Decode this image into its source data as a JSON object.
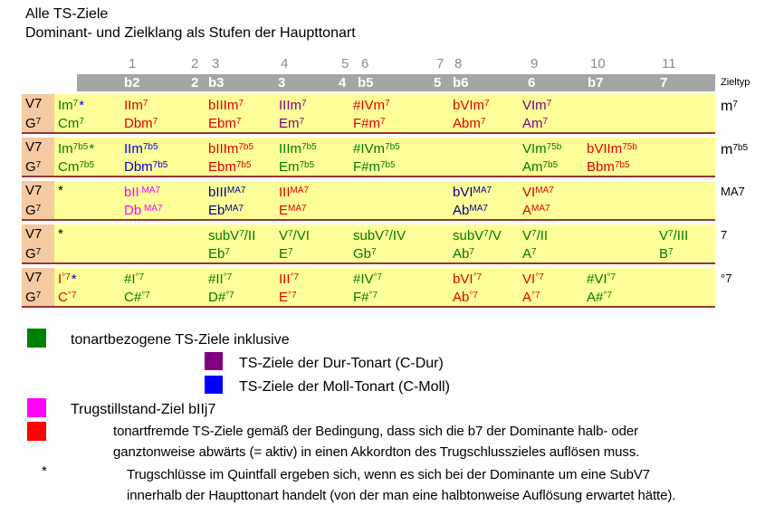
{
  "title": "Alle TS-Ziele",
  "subtitle": "Dominant- und Zielklang als Stufen der Haupttonart",
  "zieltyp_label": "Zieltyp",
  "header": {
    "numbers": [
      "1",
      "2",
      "3",
      "4",
      "5",
      "6",
      "7",
      "8",
      "9",
      "10",
      "11"
    ],
    "intervals": [
      "b2",
      "2",
      "b3",
      "3",
      "4",
      "b5",
      "5",
      "b6",
      "6",
      "b7",
      "7"
    ]
  },
  "dominant": {
    "roman": [
      [
        "V7",
        "n"
      ]
    ],
    "chord": [
      [
        "G",
        "n"
      ],
      [
        "7",
        "s"
      ]
    ]
  },
  "colors": {
    "green": "#007A00",
    "red": "#E00000",
    "purple": "#7D007D",
    "blue": "#0000DC",
    "navy": "#00008B",
    "magenta": "#FF00FF",
    "black": "#000000",
    "starblue": "#0000CD"
  },
  "rows": [
    {
      "zieltyp": [
        [
          "m",
          "n"
        ],
        [
          "7",
          "s"
        ]
      ],
      "cells": [
        {
          "col": "c0",
          "color": "green",
          "star": "starblue",
          "top": [
            [
              "Im",
              "n"
            ],
            [
              "7",
              "s"
            ]
          ],
          "bottom": [
            [
              "Cm",
              "n"
            ],
            [
              "7",
              "s"
            ]
          ]
        },
        {
          "col": "b2",
          "color": "red",
          "top": [
            [
              "IIm",
              "n"
            ],
            [
              "7",
              "s"
            ]
          ],
          "bottom": [
            [
              "Dbm",
              "n"
            ],
            [
              "7",
              "s"
            ]
          ]
        },
        {
          "col": "b3",
          "color": "red",
          "top": [
            [
              "bIIIm",
              "n"
            ],
            [
              "7",
              "s"
            ]
          ],
          "bottom": [
            [
              "Ebm",
              "n"
            ],
            [
              "7",
              "s"
            ]
          ]
        },
        {
          "col": "3",
          "color": "purple",
          "top": [
            [
              "IIIm",
              "n"
            ],
            [
              "7",
              "s"
            ]
          ],
          "bottom": [
            [
              "Em",
              "n"
            ],
            [
              "7",
              "s"
            ]
          ]
        },
        {
          "col": "b5",
          "color": "red",
          "top": [
            [
              "#IVm",
              "n"
            ],
            [
              "7",
              "s"
            ]
          ],
          "bottom": [
            [
              "F#m",
              "n"
            ],
            [
              "7",
              "s"
            ]
          ]
        },
        {
          "col": "b6",
          "color": "red",
          "top": [
            [
              "bVIm",
              "n"
            ],
            [
              "7",
              "s"
            ]
          ],
          "bottom": [
            [
              "Abm",
              "n"
            ],
            [
              "7",
              "s"
            ]
          ]
        },
        {
          "col": "6",
          "color": "purple",
          "top": [
            [
              "VIm",
              "n"
            ],
            [
              "7",
              "s"
            ]
          ],
          "bottom": [
            [
              "Am",
              "n"
            ],
            [
              "7",
              "s"
            ]
          ]
        }
      ]
    },
    {
      "zieltyp": [
        [
          "m",
          "n"
        ],
        [
          "7b5",
          "s"
        ]
      ],
      "cells": [
        {
          "col": "c0",
          "color": "green",
          "star": "green",
          "top": [
            [
              "Im",
              "n"
            ],
            [
              "7b5",
              "s"
            ]
          ],
          "bottom": [
            [
              "Cm",
              "n"
            ],
            [
              "7b5",
              "s"
            ]
          ]
        },
        {
          "col": "b2",
          "color": "blue",
          "top": [
            [
              "IIm",
              "n"
            ],
            [
              "7b5",
              "s"
            ]
          ],
          "bottom": [
            [
              "Dbm",
              "n"
            ],
            [
              "7b5",
              "s"
            ]
          ]
        },
        {
          "col": "b3",
          "color": "red",
          "top": [
            [
              "bIIIm",
              "n"
            ],
            [
              "7b5",
              "s"
            ]
          ],
          "bottom": [
            [
              "Ebm",
              "n"
            ],
            [
              "7b5",
              "s"
            ]
          ]
        },
        {
          "col": "3",
          "color": "green",
          "top": [
            [
              "IIIm",
              "n"
            ],
            [
              "7b5",
              "s"
            ]
          ],
          "bottom": [
            [
              "Em",
              "n"
            ],
            [
              "7b5",
              "s"
            ]
          ]
        },
        {
          "col": "b5",
          "color": "green",
          "top": [
            [
              "#IVm",
              "n"
            ],
            [
              "7b5",
              "s"
            ]
          ],
          "bottom": [
            [
              "F#m",
              "n"
            ],
            [
              "7b5",
              "s"
            ]
          ]
        },
        {
          "col": "6",
          "color": "green",
          "top": [
            [
              "VIm",
              "n"
            ],
            [
              "75b",
              "s"
            ]
          ],
          "bottom": [
            [
              "Am",
              "n"
            ],
            [
              "7b5",
              "s"
            ]
          ]
        },
        {
          "col": "b7",
          "color": "red",
          "top": [
            [
              "bVIIm",
              "n"
            ],
            [
              "75b",
              "s"
            ]
          ],
          "bottom": [
            [
              "Bbm",
              "n"
            ],
            [
              "7b5",
              "s"
            ]
          ]
        }
      ]
    },
    {
      "zieltyp": [
        [
          "MA7",
          "n"
        ]
      ],
      "cells": [
        {
          "col": "c0",
          "color": "black",
          "top": [
            [
              "*",
              "n"
            ]
          ]
        },
        {
          "col": "b2",
          "color": "magenta",
          "top": [
            [
              "bII",
              "n"
            ],
            [
              " MA7",
              "s"
            ]
          ],
          "bottom": [
            [
              "Db",
              "n"
            ],
            [
              " MA7",
              "s"
            ]
          ]
        },
        {
          "col": "b3",
          "color": "navy",
          "top": [
            [
              "bIII",
              "n"
            ],
            [
              "MA7",
              "s"
            ]
          ],
          "bottom": [
            [
              "Eb",
              "n"
            ],
            [
              "MA7",
              "s"
            ]
          ]
        },
        {
          "col": "3",
          "color": "red",
          "top": [
            [
              "III",
              "n"
            ],
            [
              "MA7",
              "s"
            ]
          ],
          "bottom": [
            [
              "E",
              "n"
            ],
            [
              "MA7",
              "s"
            ]
          ]
        },
        {
          "col": "b6",
          "color": "navy",
          "top": [
            [
              "bVI",
              "n"
            ],
            [
              "MA7",
              "s"
            ]
          ],
          "bottom": [
            [
              "Ab",
              "n"
            ],
            [
              "MA7",
              "s"
            ]
          ]
        },
        {
          "col": "6",
          "color": "red",
          "top": [
            [
              "VI",
              "n"
            ],
            [
              "MA7",
              "s"
            ]
          ],
          "bottom": [
            [
              "A",
              "n"
            ],
            [
              "MA7",
              "s"
            ]
          ]
        }
      ]
    },
    {
      "zieltyp": [
        [
          "7",
          "n"
        ]
      ],
      "cells": [
        {
          "col": "c0",
          "color": "black",
          "top": [
            [
              "*",
              "n"
            ]
          ]
        },
        {
          "col": "b3",
          "color": "green",
          "top": [
            [
              "subV",
              "n"
            ],
            [
              "7",
              "s"
            ],
            [
              "/II",
              "n"
            ]
          ],
          "bottom": [
            [
              "Eb",
              "n"
            ],
            [
              "7",
              "s"
            ]
          ]
        },
        {
          "col": "3",
          "color": "green",
          "top": [
            [
              "V",
              "n"
            ],
            [
              "7",
              "s"
            ],
            [
              "/VI",
              "n"
            ]
          ],
          "bottom": [
            [
              "E",
              "n"
            ],
            [
              "7",
              "s"
            ]
          ]
        },
        {
          "col": "b5",
          "color": "green",
          "top": [
            [
              "subV",
              "n"
            ],
            [
              "7",
              "s"
            ],
            [
              "/IV",
              "n"
            ]
          ],
          "bottom": [
            [
              "Gb",
              "n"
            ],
            [
              "7",
              "s"
            ]
          ]
        },
        {
          "col": "b6",
          "color": "green",
          "top": [
            [
              "subV",
              "n"
            ],
            [
              "7",
              "s"
            ],
            [
              "/V",
              "n"
            ]
          ],
          "bottom": [
            [
              "Ab",
              "n"
            ],
            [
              "7",
              "s"
            ]
          ]
        },
        {
          "col": "6",
          "color": "green",
          "top": [
            [
              "V",
              "n"
            ],
            [
              "7",
              "s"
            ],
            [
              "/II",
              "n"
            ]
          ],
          "bottom": [
            [
              "A",
              "n"
            ],
            [
              "7",
              "s"
            ]
          ]
        },
        {
          "col": "7",
          "color": "green",
          "top": [
            [
              "V",
              "n"
            ],
            [
              "7",
              "s"
            ],
            [
              "/III",
              "n"
            ]
          ],
          "bottom": [
            [
              "B",
              "n"
            ],
            [
              "7",
              "s"
            ]
          ]
        }
      ]
    },
    {
      "zieltyp": [
        [
          "°7",
          "n"
        ]
      ],
      "cells": [
        {
          "col": "c0",
          "color": "red",
          "star": "starblue",
          "top": [
            [
              "I",
              "n"
            ],
            [
              "°7",
              "s"
            ]
          ],
          "bottom": [
            [
              "C",
              "n"
            ],
            [
              "°7",
              "s"
            ]
          ]
        },
        {
          "col": "b2",
          "color": "green",
          "top": [
            [
              "#I",
              "n"
            ],
            [
              "°7",
              "s"
            ]
          ],
          "bottom": [
            [
              "C#",
              "n"
            ],
            [
              "°7",
              "s"
            ]
          ]
        },
        {
          "col": "b3",
          "color": "green",
          "top": [
            [
              "#II",
              "n"
            ],
            [
              "°7",
              "s"
            ]
          ],
          "bottom": [
            [
              "D#",
              "n"
            ],
            [
              "°7",
              "s"
            ]
          ]
        },
        {
          "col": "3",
          "color": "red",
          "top": [
            [
              "III",
              "n"
            ],
            [
              "°7",
              "s"
            ]
          ],
          "bottom": [
            [
              "E",
              "n"
            ],
            [
              "°7",
              "s"
            ]
          ]
        },
        {
          "col": "b5",
          "color": "green",
          "top": [
            [
              "#IV",
              "n"
            ],
            [
              "°7",
              "s"
            ]
          ],
          "bottom": [
            [
              "F#",
              "n"
            ],
            [
              "°7",
              "s"
            ]
          ]
        },
        {
          "col": "b6",
          "color": "red",
          "top": [
            [
              "bVI",
              "n"
            ],
            [
              "°7",
              "s"
            ]
          ],
          "bottom": [
            [
              "Ab",
              "n"
            ],
            [
              "°7",
              "s"
            ]
          ]
        },
        {
          "col": "6",
          "color": "red",
          "top": [
            [
              "VI",
              "n"
            ],
            [
              "°7",
              "s"
            ]
          ],
          "bottom": [
            [
              "A",
              "n"
            ],
            [
              "°7",
              "s"
            ]
          ]
        },
        {
          "col": "b7",
          "color": "green",
          "top": [
            [
              "#VI",
              "n"
            ],
            [
              "°7",
              "s"
            ]
          ],
          "bottom": [
            [
              "A#",
              "n"
            ],
            [
              "°7",
              "s"
            ]
          ]
        }
      ]
    }
  ],
  "legend": {
    "items": [
      {
        "name": "key-related-targets",
        "variant": "main",
        "swatch": "#008000",
        "text": "tonartbezogene TS-Ziele inklusive"
      },
      {
        "name": "major-key-targets",
        "variant": "sub",
        "swatch": "#800080",
        "text": "TS-Ziele der Dur-Tonart (C-Dur)"
      },
      {
        "name": "minor-key-targets",
        "variant": "sub",
        "swatch": "#0000FF",
        "text": "TS-Ziele der Moll-Tonart (C-Moll)"
      },
      {
        "name": "deceptive-standstill-target",
        "variant": "main",
        "swatch": "#FF00FF",
        "text": "Trugstillstand-Ziel bIIj7"
      },
      {
        "name": "foreign-targets",
        "variant": "red",
        "swatch": "#FF0000",
        "lines": [
          "tonartfremde TS-Ziele gemäß der Bedingung, dass sich die b7 der Dominante halb- oder",
          "ganztonweise abwärts (= aktiv) in einen Akkordton des Trugschlusszieles auflösen muss."
        ]
      },
      {
        "name": "quintfall-footnote",
        "variant": "note",
        "marker": "*",
        "lines": [
          "Trugschlüsse im Quintfall ergeben sich, wenn es sich bei der Dominante um eine SubV7",
          "innerhalb der Haupttonart handelt (von der man eine halbtonweise Auflösung erwartet hätte)."
        ]
      }
    ]
  }
}
